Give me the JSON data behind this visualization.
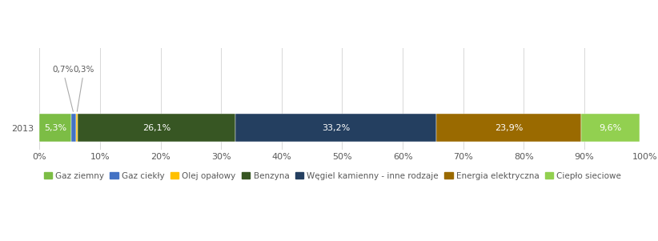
{
  "year": "2013",
  "segments": [
    {
      "label": "Gaz ziemny",
      "value": 5.3,
      "color": "#7cbd45"
    },
    {
      "label": "Gaz ciekły",
      "value": 0.7,
      "color": "#4472c4"
    },
    {
      "label": "Olej opałowy",
      "value": 0.3,
      "color": "#ffc000"
    },
    {
      "label": "Benzyna",
      "value": 26.1,
      "color": "#375623"
    },
    {
      "label": "Węgiel kamienny - inne rodzaje",
      "value": 33.2,
      "color": "#243f60"
    },
    {
      "label": "Energia elektryczna",
      "value": 23.9,
      "color": "#9a6a00"
    },
    {
      "label": "Ciepło sieciowe",
      "value": 9.6,
      "color": "#92d050"
    }
  ],
  "annotated_labels": [
    "Gaz ciekły",
    "Olej opałowy"
  ],
  "background_color": "#ffffff",
  "bar_height": 0.55,
  "xlim": [
    0,
    100
  ],
  "xticks": [
    0,
    10,
    20,
    30,
    40,
    50,
    60,
    70,
    80,
    90,
    100
  ],
  "xticklabels": [
    "0%",
    "10%",
    "20%",
    "30%",
    "40%",
    "50%",
    "60%",
    "70%",
    "80%",
    "90%",
    "100%"
  ],
  "legend_fontsize": 7.5,
  "label_fontsize": 8,
  "annotation_fontsize": 7.5,
  "tick_fontsize": 8,
  "grid_color": "#d8d8d8",
  "text_color": "#595959"
}
